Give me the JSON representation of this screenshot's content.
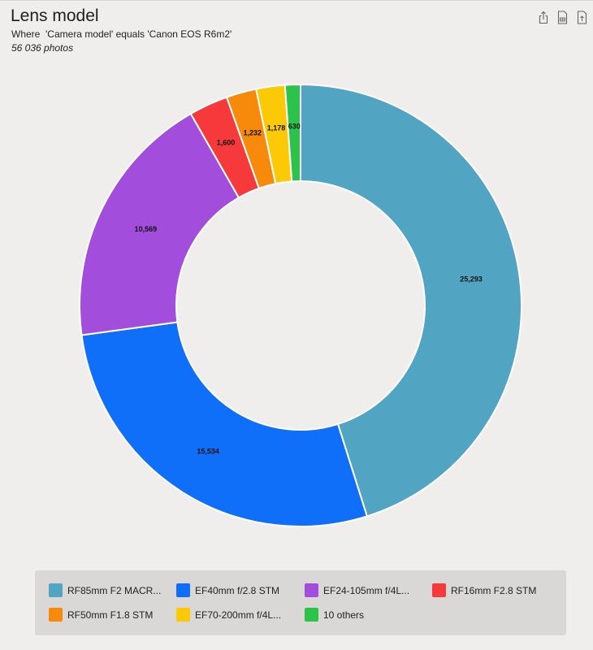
{
  "header": {
    "title": "Lens model",
    "subtitle": "Where  'Camera model' equals 'Canon EOS R6m2'",
    "count": "56 036 photos"
  },
  "toolbar": {
    "icons": [
      "share-icon",
      "csv-export-icon",
      "pdf-export-icon"
    ]
  },
  "chart_data": {
    "type": "pie",
    "subtype": "donut",
    "title": "Lens model",
    "series": [
      {
        "name": "RF85mm F2 MACR...",
        "value": 25293,
        "label": "25,293",
        "color": "#51a5c2"
      },
      {
        "name": "EF40mm f/2.8 STM",
        "value": 15534,
        "label": "15,534",
        "color": "#0f6ff8"
      },
      {
        "name": "EF24-105mm f/4L...",
        "value": 10569,
        "label": "10,569",
        "color": "#a34ddc"
      },
      {
        "name": "RF16mm F2.8 STM",
        "value": 1600,
        "label": "1,600",
        "color": "#f6393a"
      },
      {
        "name": "RF50mm F1.8 STM",
        "value": 1232,
        "label": "1,232",
        "color": "#f88a0b"
      },
      {
        "name": "EF70-200mm f/4L...",
        "value": 1178,
        "label": "1,178",
        "color": "#fbc906"
      },
      {
        "name": "10 others",
        "value": 630,
        "label": "630",
        "color": "#2dc34a"
      }
    ],
    "legend": "bottom"
  }
}
